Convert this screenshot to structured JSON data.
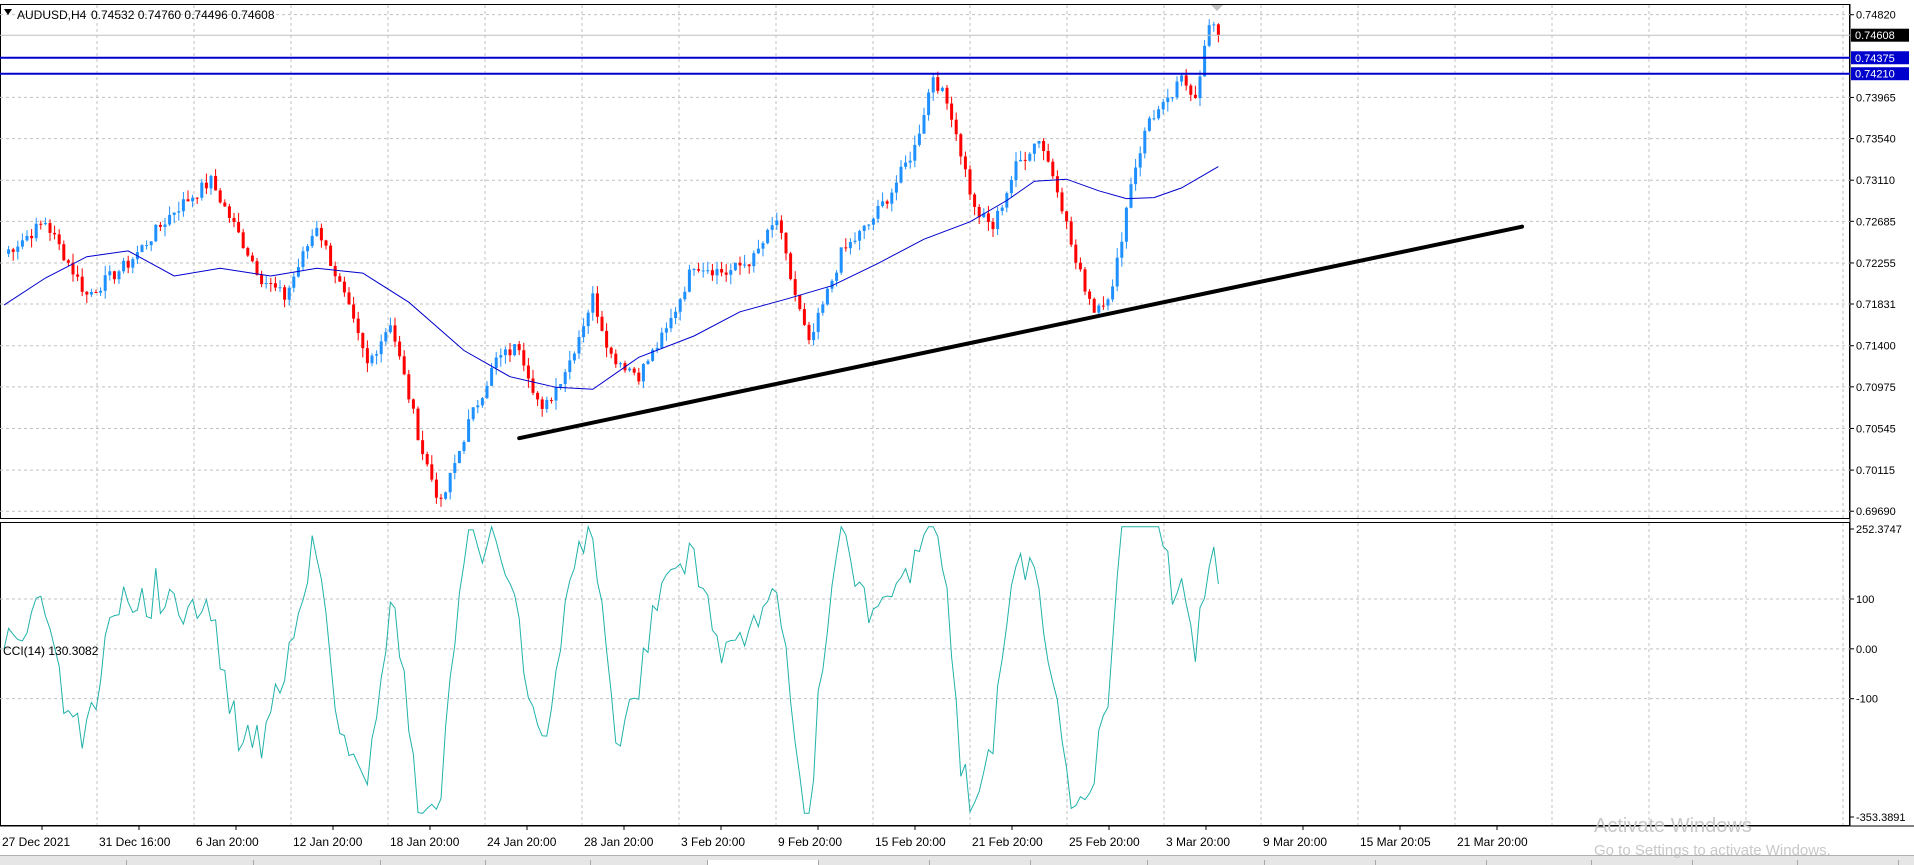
{
  "window": {
    "symbol": "AUDUSD,H4",
    "ohlc": "0.74532 0.74760 0.74496 0.74608"
  },
  "price_levels": [
    {
      "label": "0.74608",
      "style": "current"
    },
    {
      "label": "0.74375",
      "style": "hline"
    },
    {
      "label": "0.74210",
      "style": "hline"
    }
  ],
  "indicator": {
    "label": "CCI(14) 130.3082",
    "axis_labels": [
      "252.3747",
      "100",
      "0.00",
      "-100",
      "-353.3891"
    ]
  },
  "time_labels": [
    "27 Dec 2021",
    "31 Dec 16:00",
    "6 Jan 20:00",
    "12 Jan 20:00",
    "18 Jan 20:00",
    "24 Jan 20:00",
    "28 Jan 20:00",
    "3 Feb 20:00",
    "9 Feb 20:00",
    "15 Feb 20:00",
    "21 Feb 20:00",
    "25 Feb 20:00",
    "3 Mar 20:00",
    "9 Mar 20:00",
    "15 Mar 20:05",
    "21 Mar 20:00"
  ],
  "watermark": {
    "line1": "Activate Windows",
    "line2": "Go to Settings to activate Windows."
  },
  "colors": {
    "bull": "#1e90ff",
    "bear": "#ff0000",
    "ma": "#0000cd",
    "trendline": "#000000",
    "hline": "#0000cd",
    "cci": "#20b2aa",
    "grid": "#c0c0c0"
  },
  "chart_data": [
    {
      "type": "candlestick",
      "symbol": "AUDUSD",
      "timeframe": "H4",
      "y_ticks": [
        0.7482,
        0.73965,
        0.7354,
        0.7311,
        0.72685,
        0.72255,
        0.71831,
        0.714,
        0.70975,
        0.70545,
        0.70115,
        0.6969
      ],
      "ylim": [
        0.6962,
        0.7492
      ],
      "price_anchors": [
        {
          "t": 0,
          "p": 0.7235
        },
        {
          "t": 9,
          "p": 0.7268
        },
        {
          "t": 18,
          "p": 0.7192
        },
        {
          "t": 27,
          "p": 0.7225
        },
        {
          "t": 37,
          "p": 0.728
        },
        {
          "t": 45,
          "p": 0.731
        },
        {
          "t": 51,
          "p": 0.7255
        },
        {
          "t": 56,
          "p": 0.721
        },
        {
          "t": 61,
          "p": 0.719
        },
        {
          "t": 68,
          "p": 0.7265
        },
        {
          "t": 74,
          "p": 0.719
        },
        {
          "t": 79,
          "p": 0.712
        },
        {
          "t": 84,
          "p": 0.7165
        },
        {
          "t": 91,
          "p": 0.703
        },
        {
          "t": 95,
          "p": 0.6975
        },
        {
          "t": 101,
          "p": 0.706
        },
        {
          "t": 107,
          "p": 0.7125
        },
        {
          "t": 112,
          "p": 0.714
        },
        {
          "t": 117,
          "p": 0.707
        },
        {
          "t": 123,
          "p": 0.7125
        },
        {
          "t": 128,
          "p": 0.719
        },
        {
          "t": 132,
          "p": 0.713
        },
        {
          "t": 138,
          "p": 0.711
        },
        {
          "t": 144,
          "p": 0.7155
        },
        {
          "t": 150,
          "p": 0.7225
        },
        {
          "t": 157,
          "p": 0.7215
        },
        {
          "t": 163,
          "p": 0.723
        },
        {
          "t": 168,
          "p": 0.727
        },
        {
          "t": 171,
          "p": 0.721
        },
        {
          "t": 175,
          "p": 0.714
        },
        {
          "t": 182,
          "p": 0.7235
        },
        {
          "t": 188,
          "p": 0.7265
        },
        {
          "t": 193,
          "p": 0.73
        },
        {
          "t": 198,
          "p": 0.7345
        },
        {
          "t": 202,
          "p": 0.742
        },
        {
          "t": 206,
          "p": 0.738
        },
        {
          "t": 211,
          "p": 0.728
        },
        {
          "t": 215,
          "p": 0.7262
        },
        {
          "t": 220,
          "p": 0.7325
        },
        {
          "t": 225,
          "p": 0.7355
        },
        {
          "t": 229,
          "p": 0.7305
        },
        {
          "t": 233,
          "p": 0.7225
        },
        {
          "t": 237,
          "p": 0.7178
        },
        {
          "t": 241,
          "p": 0.7198
        },
        {
          "t": 245,
          "p": 0.731
        },
        {
          "t": 249,
          "p": 0.7375
        },
        {
          "t": 253,
          "p": 0.739
        },
        {
          "t": 256,
          "p": 0.7415
        },
        {
          "t": 259,
          "p": 0.74
        },
        {
          "t": 262,
          "p": 0.747
        },
        {
          "t": 264,
          "p": 0.7461
        }
      ],
      "moving_average": [
        {
          "t": 0,
          "p": 0.7182
        },
        {
          "t": 9,
          "p": 0.721
        },
        {
          "t": 18,
          "p": 0.7232
        },
        {
          "t": 27,
          "p": 0.7238
        },
        {
          "t": 37,
          "p": 0.7212
        },
        {
          "t": 47,
          "p": 0.722
        },
        {
          "t": 58,
          "p": 0.7212
        },
        {
          "t": 68,
          "p": 0.722
        },
        {
          "t": 78,
          "p": 0.7215
        },
        {
          "t": 88,
          "p": 0.7185
        },
        {
          "t": 100,
          "p": 0.7135
        },
        {
          "t": 110,
          "p": 0.7108
        },
        {
          "t": 120,
          "p": 0.7097
        },
        {
          "t": 128,
          "p": 0.7095
        },
        {
          "t": 138,
          "p": 0.7128
        },
        {
          "t": 150,
          "p": 0.715
        },
        {
          "t": 160,
          "p": 0.7175
        },
        {
          "t": 170,
          "p": 0.7188
        },
        {
          "t": 180,
          "p": 0.7202
        },
        {
          "t": 190,
          "p": 0.7225
        },
        {
          "t": 200,
          "p": 0.725
        },
        {
          "t": 210,
          "p": 0.7268
        },
        {
          "t": 218,
          "p": 0.729
        },
        {
          "t": 224,
          "p": 0.731
        },
        {
          "t": 231,
          "p": 0.7312
        },
        {
          "t": 238,
          "p": 0.73
        },
        {
          "t": 244,
          "p": 0.7292
        },
        {
          "t": 250,
          "p": 0.7293
        },
        {
          "t": 256,
          "p": 0.7303
        },
        {
          "t": 264,
          "p": 0.7325
        }
      ],
      "trendline": [
        {
          "t": 112,
          "p": 0.70445
        },
        {
          "t": 330,
          "p": 0.7263
        }
      ],
      "hlines": [
        0.74375,
        0.7421
      ],
      "current_price": 0.74608
    },
    {
      "type": "line",
      "name": "CCI(14)",
      "last_value": 130.3082,
      "ylim": [
        -353.3891,
        252.3747
      ],
      "y_ticks": [
        252.3747,
        100,
        0,
        -100,
        -353.3891
      ]
    }
  ]
}
